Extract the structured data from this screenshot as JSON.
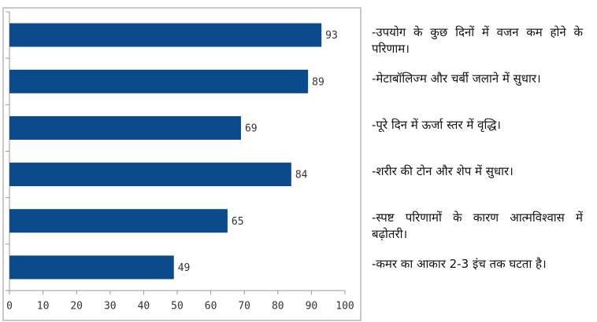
{
  "chart_data": {
    "type": "bar",
    "orientation": "horizontal",
    "categories": [
      "-उपयोग के कुछ दिनों में वजन कम होने के परिणाम।",
      "-मेटाबॉलिज्म और चर्बी जलाने में सुधार।",
      "-पूरे दिन में ऊर्जा स्तर में वृद्धि।",
      "-शरीर की टोन और शेप में सुधार।",
      "-स्पष्ट परिणामों के कारण आत्मविश्वास में बढ़ोतरी।",
      "-कमर का आकार 2-3 इंच तक घटता है।"
    ],
    "values": [
      93,
      89,
      69,
      84,
      65,
      49
    ],
    "color": "#0b4a8b",
    "xlim": [
      0,
      100
    ],
    "xticks": [
      0,
      10,
      20,
      30,
      40,
      50,
      60,
      70,
      80,
      90,
      100
    ],
    "grid": false
  }
}
